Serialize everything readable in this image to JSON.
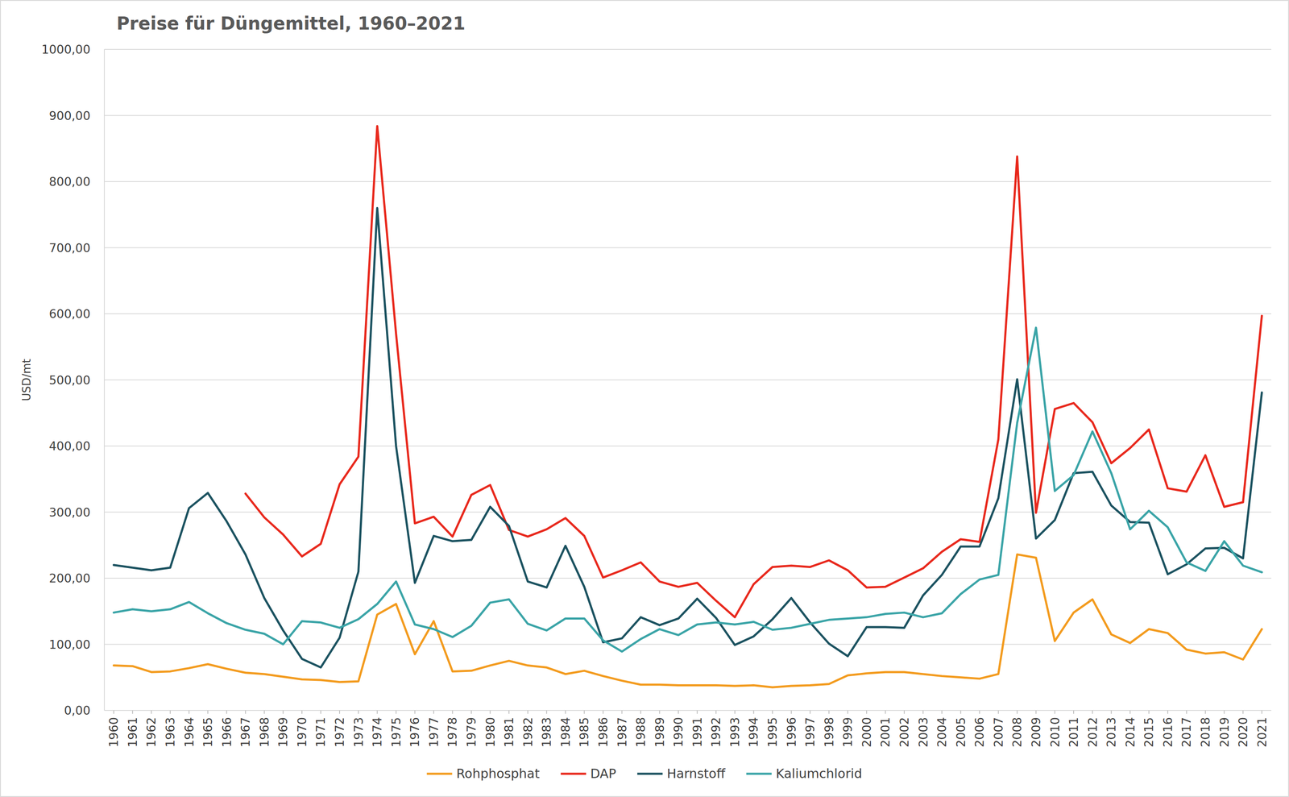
{
  "chart_data": {
    "type": "line",
    "title": "Preise für Düngemittel, 1960–2021",
    "y_label": "USD/mt",
    "categories": [
      "1960",
      "1961",
      "1962",
      "1963",
      "1964",
      "1965",
      "1966",
      "1967",
      "1968",
      "1969",
      "1970",
      "1971",
      "1972",
      "1973",
      "1974",
      "1975",
      "1976",
      "1977",
      "1978",
      "1979",
      "1980",
      "1981",
      "1982",
      "1983",
      "1984",
      "1985",
      "1986",
      "1987",
      "1988",
      "1989",
      "1990",
      "1991",
      "1992",
      "1993",
      "1994",
      "1995",
      "1996",
      "1997",
      "1998",
      "1999",
      "2000",
      "2001",
      "2002",
      "2003",
      "2004",
      "2005",
      "2006",
      "2007",
      "2008",
      "2009",
      "2010",
      "2011",
      "2012",
      "2013",
      "2014",
      "2015",
      "2016",
      "2017",
      "2018",
      "2019",
      "2020",
      "2021"
    ],
    "series": [
      {
        "name": "Rohphosphat",
        "color": "#f39b1e",
        "values": [
          68,
          67,
          58,
          59,
          64,
          70,
          63,
          57,
          55,
          51,
          47,
          46,
          43,
          44,
          145,
          161,
          85,
          135,
          59,
          60,
          68,
          75,
          68,
          65,
          55,
          60,
          52,
          45,
          39,
          39,
          38,
          38,
          38,
          37,
          38,
          35,
          37,
          38,
          40,
          53,
          56,
          58,
          58,
          55,
          52,
          50,
          48,
          55,
          236,
          231,
          105,
          148,
          168,
          115,
          102,
          123,
          117,
          92,
          86,
          88,
          77,
          123
        ]
      },
      {
        "name": "DAP",
        "color": "#e8281c",
        "values": [
          null,
          null,
          null,
          null,
          null,
          null,
          null,
          328,
          292,
          266,
          233,
          252,
          342,
          384,
          884,
          570,
          283,
          293,
          263,
          326,
          341,
          273,
          263,
          274,
          291,
          264,
          201,
          212,
          224,
          195,
          187,
          193,
          166,
          141,
          191,
          217,
          219,
          217,
          227,
          212,
          186,
          187,
          201,
          215,
          240,
          259,
          255,
          410,
          838,
          299,
          456,
          465,
          436,
          374,
          397,
          425,
          336,
          331,
          386,
          308,
          315,
          597
        ]
      },
      {
        "name": "Harnstoff",
        "color": "#1b5260",
        "values": [
          220,
          216,
          212,
          216,
          306,
          329,
          286,
          236,
          170,
          121,
          78,
          65,
          110,
          210,
          760,
          400,
          193,
          264,
          256,
          258,
          308,
          279,
          195,
          186,
          249,
          187,
          103,
          109,
          141,
          129,
          139,
          169,
          140,
          99,
          112,
          138,
          170,
          133,
          101,
          82,
          126,
          126,
          125,
          174,
          205,
          248,
          248,
          321,
          501,
          260,
          288,
          359,
          361,
          310,
          285,
          284,
          206,
          221,
          245,
          246,
          230,
          481
        ]
      },
      {
        "name": "Kaliumchlorid",
        "color": "#3aa4a7",
        "values": [
          148,
          153,
          150,
          153,
          164,
          147,
          132,
          122,
          116,
          100,
          135,
          133,
          125,
          138,
          161,
          195,
          130,
          123,
          111,
          128,
          163,
          168,
          131,
          121,
          139,
          139,
          106,
          89,
          108,
          123,
          114,
          130,
          133,
          130,
          134,
          122,
          125,
          131,
          137,
          139,
          141,
          146,
          148,
          141,
          147,
          176,
          198,
          205,
          435,
          579,
          332,
          356,
          422,
          359,
          274,
          302,
          277,
          224,
          211,
          256,
          219,
          209
        ]
      }
    ],
    "ylim": [
      0,
      1000
    ],
    "yticks": [
      {
        "value": 0,
        "label": "0,00"
      },
      {
        "value": 100,
        "label": "100,00"
      },
      {
        "value": 200,
        "label": "200,00"
      },
      {
        "value": 300,
        "label": "300,00"
      },
      {
        "value": 400,
        "label": "400,00"
      },
      {
        "value": 500,
        "label": "500,00"
      },
      {
        "value": 600,
        "label": "600,00"
      },
      {
        "value": 700,
        "label": "700,00"
      },
      {
        "value": 800,
        "label": "800,00"
      },
      {
        "value": 900,
        "label": "900,00"
      },
      {
        "value": 1000,
        "label": "1000,00"
      }
    ],
    "grid": true,
    "legend": "bottom"
  }
}
